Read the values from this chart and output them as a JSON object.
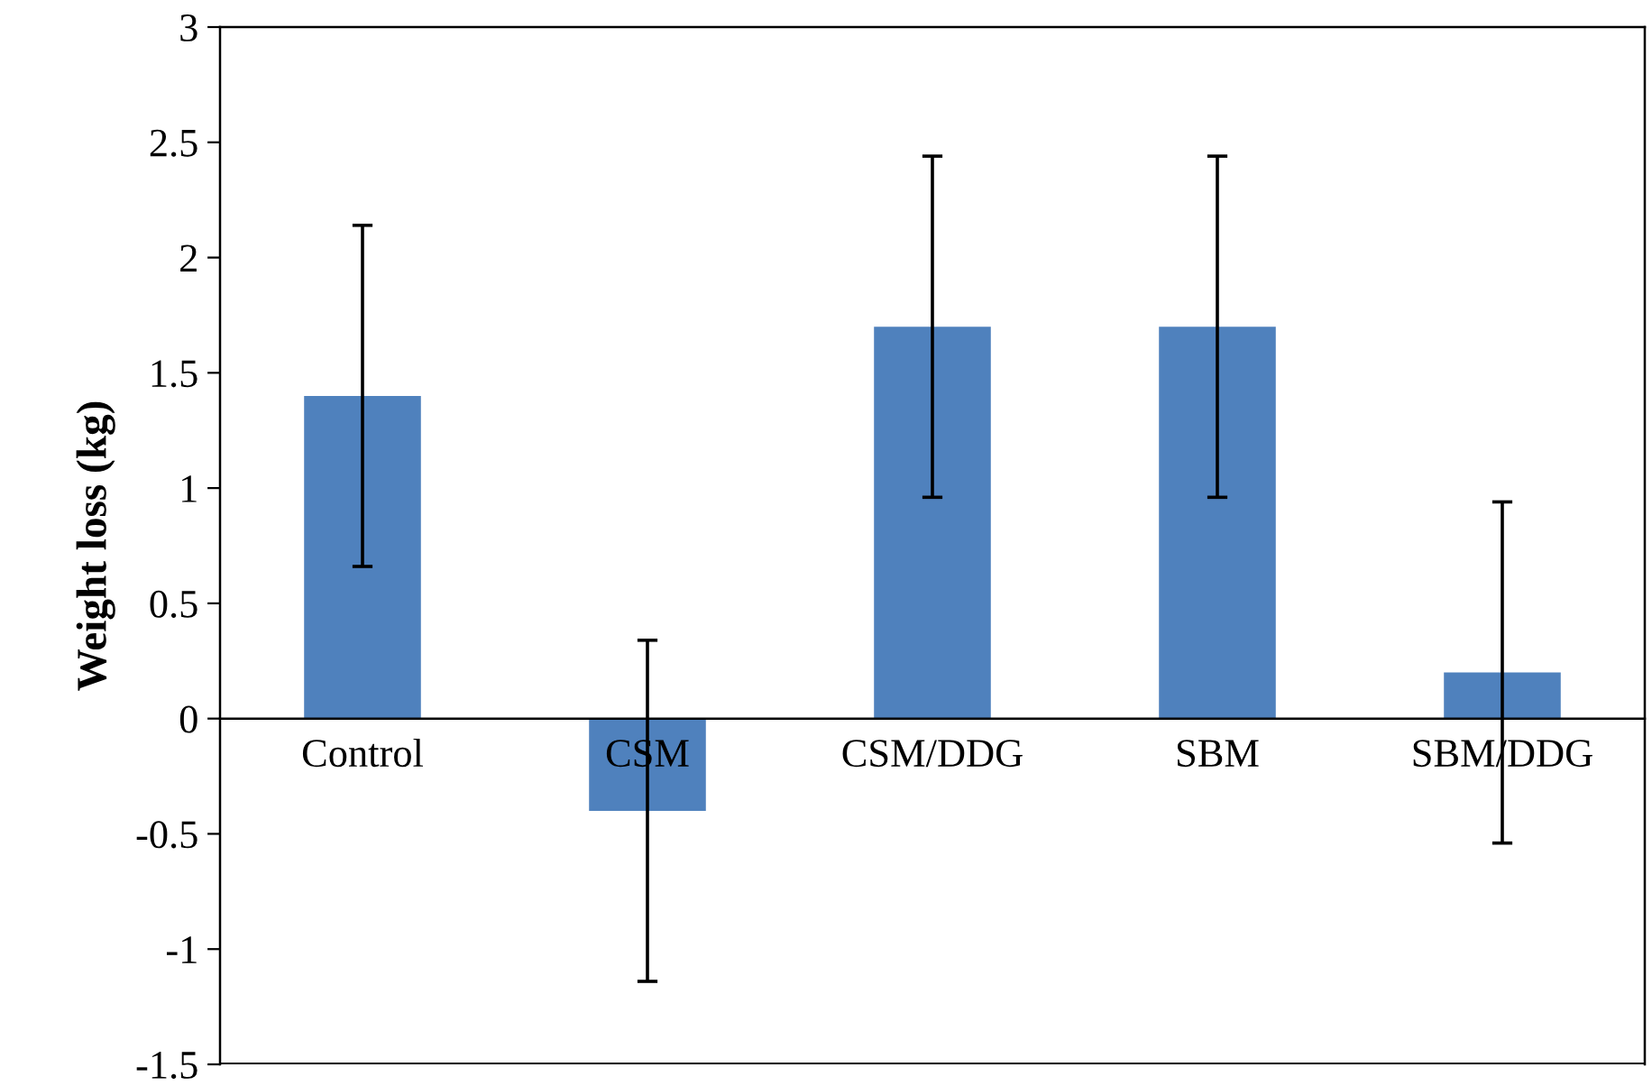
{
  "chart_data": {
    "type": "bar",
    "ylabel": "Weight loss (kg)",
    "categories": [
      "Control",
      "CSM",
      "CSM/DDG",
      "SBM",
      "SBM/DDG"
    ],
    "values": [
      1.4,
      -0.4,
      1.7,
      1.7,
      0.2
    ],
    "errors": [
      0.74,
      0.74,
      0.74,
      0.74,
      0.74
    ],
    "color": "#4f81bd",
    "ylim": [
      -1.5,
      3
    ],
    "yticks": [
      -1.5,
      -1,
      -0.5,
      0,
      0.5,
      1,
      1.5,
      2,
      2.5,
      3
    ],
    "grid": false,
    "legend": false
  }
}
